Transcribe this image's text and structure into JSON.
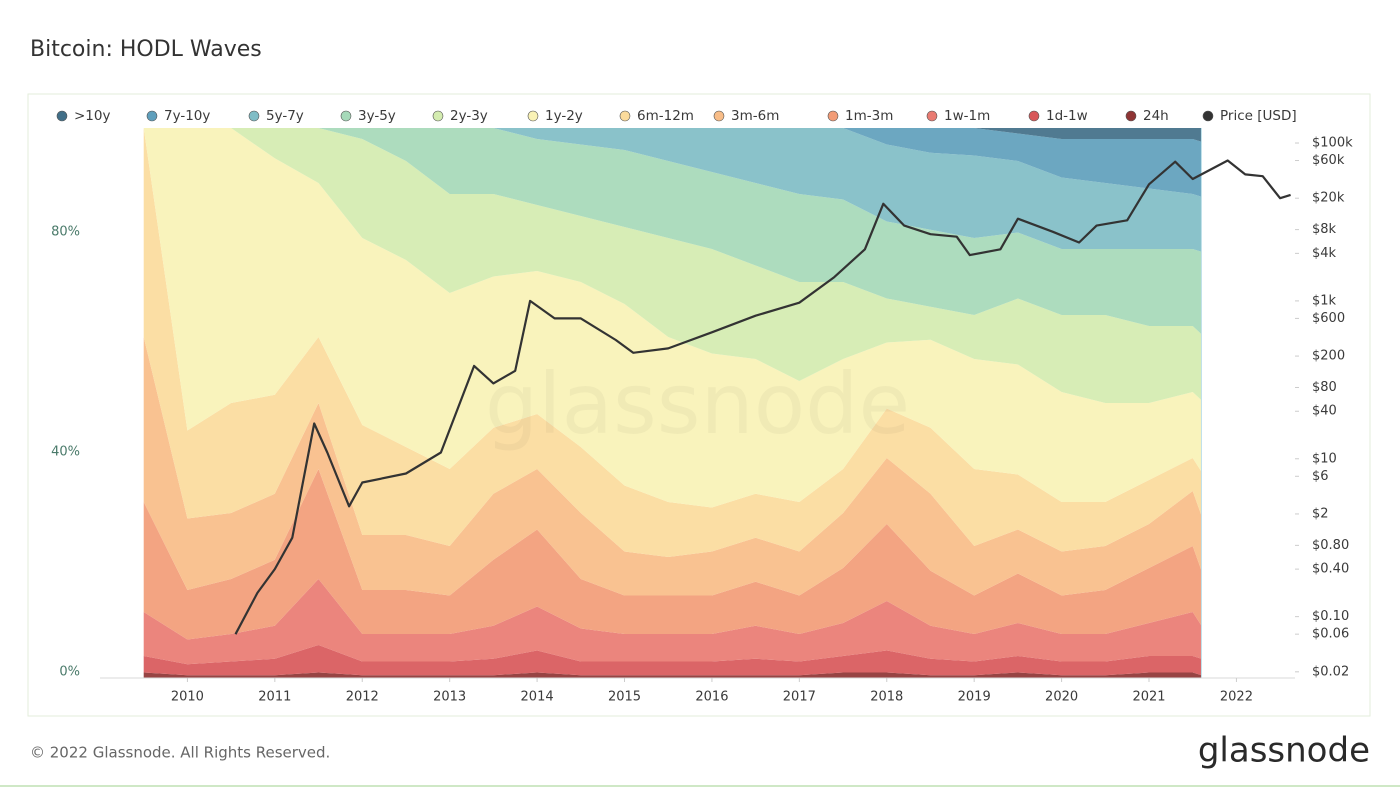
{
  "chart_data": {
    "type": "area",
    "stacked": true,
    "title": "Bitcoin: HODL Waves",
    "watermark": "glassnode",
    "legend": "top",
    "grid": false,
    "x": [
      2009.5,
      2010.0,
      2010.5,
      2011.0,
      2011.5,
      2012.0,
      2012.5,
      2013.0,
      2013.5,
      2014.0,
      2014.5,
      2015.0,
      2015.5,
      2016.0,
      2016.5,
      2017.0,
      2017.5,
      2018.0,
      2018.5,
      2019.0,
      2019.5,
      2020.0,
      2020.5,
      2021.0,
      2021.5,
      2021.6
    ],
    "xlim": [
      2009,
      2022.67
    ],
    "xticks": [
      2010,
      2011,
      2012,
      2013,
      2014,
      2015,
      2016,
      2017,
      2018,
      2019,
      2020,
      2021,
      2022
    ],
    "ylim": [
      0,
      100
    ],
    "yticks": [
      {
        "value": 0,
        "label": "0%"
      },
      {
        "value": 40,
        "label": "40%"
      },
      {
        "value": 80,
        "label": "80%"
      }
    ],
    "y2log": true,
    "y2lim": [
      0.0167,
      155000
    ],
    "y2ticks": [
      {
        "value": 100000,
        "label": "$100k"
      },
      {
        "value": 60000,
        "label": "$60k"
      },
      {
        "value": 20000,
        "label": "$20k"
      },
      {
        "value": 8000,
        "label": "$8k"
      },
      {
        "value": 4000,
        "label": "$4k"
      },
      {
        "value": 1000,
        "label": "$1k"
      },
      {
        "value": 600,
        "label": "$600"
      },
      {
        "value": 200,
        "label": "$200"
      },
      {
        "value": 80,
        "label": "$80"
      },
      {
        "value": 40,
        "label": "$40"
      },
      {
        "value": 10,
        "label": "$10"
      },
      {
        "value": 6,
        "label": "$6"
      },
      {
        "value": 2,
        "label": "$2"
      },
      {
        "value": 0.8,
        "label": "$0.80"
      },
      {
        "value": 0.4,
        "label": "$0.40"
      },
      {
        "value": 0.1,
        "label": "$0.10"
      },
      {
        "value": 0.06,
        "label": "$0.06"
      },
      {
        "value": 0.02,
        "label": "$0.02"
      }
    ],
    "series": [
      {
        "name": "24h",
        "color": "#8e3434",
        "values": [
          1,
          0.5,
          0.5,
          0.5,
          1,
          0.5,
          0.5,
          0.5,
          0.5,
          1,
          0.5,
          0.5,
          0.5,
          0.5,
          0.5,
          0.5,
          1,
          1,
          0.5,
          0.5,
          1,
          0.5,
          0.5,
          1,
          1,
          0.5
        ]
      },
      {
        "name": "1d-1w",
        "color": "#d8585a",
        "values": [
          3,
          2,
          2.5,
          3,
          5,
          2.5,
          2.5,
          2.5,
          3,
          4,
          2.5,
          2.5,
          2.5,
          2.5,
          3,
          2.5,
          3,
          4,
          3,
          2.5,
          3,
          2.5,
          2.5,
          3,
          3,
          3
        ]
      },
      {
        "name": "1w-1m",
        "color": "#e97b72",
        "values": [
          8,
          4.5,
          5,
          6,
          12,
          5,
          5,
          5,
          6,
          8,
          6,
          5,
          5,
          5,
          6,
          5,
          6,
          9,
          6,
          5,
          6,
          5,
          5,
          6,
          8,
          6
        ]
      },
      {
        "name": "1m-3m",
        "color": "#f29c77",
        "values": [
          20,
          9,
          10,
          12,
          20,
          8,
          8,
          7,
          12,
          14,
          9,
          7,
          7,
          7,
          8,
          7,
          10,
          14,
          10,
          7,
          9,
          7,
          8,
          10,
          12,
          10
        ]
      },
      {
        "name": "3m-6m",
        "color": "#f8bd88",
        "values": [
          30,
          13,
          12,
          12,
          12,
          10,
          10,
          9,
          12,
          11,
          12,
          8,
          7,
          8,
          8,
          8,
          10,
          12,
          14,
          9,
          8,
          8,
          8,
          8,
          10,
          10
        ]
      },
      {
        "name": "6m-12m",
        "color": "#fbdb9c",
        "values": [
          38,
          16,
          20,
          18,
          12,
          20,
          16,
          14,
          12,
          10,
          12,
          12,
          10,
          8,
          8,
          9,
          8,
          9,
          12,
          14,
          10,
          9,
          8,
          8,
          6,
          8
        ]
      },
      {
        "name": "1y-2y",
        "color": "#f9f2b6",
        "values": [
          0,
          55,
          50,
          43,
          28,
          34,
          34,
          32,
          27.5,
          26,
          30,
          33,
          30,
          28,
          24.5,
          22,
          20,
          12,
          16,
          20,
          20,
          20,
          18,
          14,
          12,
          13
        ]
      },
      {
        "name": "2y-3y",
        "color": "#d4ecb0",
        "values": [
          0,
          0,
          0,
          5.5,
          10,
          18,
          18,
          18,
          15,
          12,
          12,
          14,
          18,
          19,
          17,
          18,
          14,
          8,
          6,
          8,
          12,
          14,
          16,
          14,
          12,
          12
        ]
      },
      {
        "name": "3y-5y",
        "color": "#a6d9b9",
        "values": [
          0,
          0,
          0,
          0,
          0,
          2,
          6,
          12,
          12,
          12,
          13,
          14,
          14,
          14,
          15,
          16,
          15,
          14,
          14,
          14,
          12,
          12,
          12,
          14,
          14,
          15
        ]
      },
      {
        "name": "5y-7y",
        "color": "#80bdc6",
        "values": [
          0,
          0,
          0,
          0,
          0,
          0,
          0,
          0,
          0,
          2,
          3,
          4,
          6,
          8,
          10,
          12,
          13,
          14,
          14,
          15,
          13,
          13,
          12,
          11,
          10,
          10
        ]
      },
      {
        "name": "7y-10y",
        "color": "#5f9fbc",
        "values": [
          0,
          0,
          0,
          0,
          0,
          0,
          0,
          0,
          0,
          0,
          0,
          0,
          0,
          0,
          0,
          0,
          0,
          3,
          4.5,
          5,
          5,
          7,
          8,
          9,
          10,
          10
        ]
      },
      {
        "name": ">10y",
        "color": "#416f88",
        "values": [
          0,
          0,
          0,
          0,
          0,
          0,
          0,
          0,
          0,
          0,
          0,
          0,
          0,
          0,
          0,
          0,
          0,
          0,
          0,
          0,
          1,
          2,
          2,
          2,
          2,
          2.5
        ]
      },
      {
        "name": "Price [USD]",
        "color": "#333333",
        "axis": "y2",
        "type": "line",
        "x": [
          2010.55,
          2010.8,
          2011.0,
          2011.2,
          2011.45,
          2011.6,
          2011.85,
          2012.0,
          2012.5,
          2012.9,
          2013.28,
          2013.5,
          2013.75,
          2013.92,
          2014.2,
          2014.5,
          2014.9,
          2015.1,
          2015.5,
          2016.0,
          2016.5,
          2017.0,
          2017.4,
          2017.75,
          2017.96,
          2018.2,
          2018.5,
          2018.8,
          2018.95,
          2019.3,
          2019.5,
          2019.9,
          2020.2,
          2020.4,
          2020.75,
          2021.0,
          2021.3,
          2021.5,
          2021.9,
          2022.1,
          2022.3,
          2022.5,
          2022.62
        ],
        "values": [
          0.06,
          0.2,
          0.4,
          1,
          28,
          12,
          2.5,
          5,
          6.5,
          12,
          150,
          90,
          130,
          1000,
          600,
          600,
          320,
          220,
          250,
          400,
          650,
          950,
          2000,
          4500,
          17000,
          9000,
          7000,
          6500,
          3800,
          4500,
          11000,
          7500,
          5500,
          9000,
          10500,
          30000,
          58000,
          35000,
          60000,
          40000,
          38000,
          20000,
          22000
        ]
      }
    ]
  },
  "footer": {
    "copyright": "© 2022 Glassnode. All Rights Reserved.",
    "logo": "glassnode"
  }
}
